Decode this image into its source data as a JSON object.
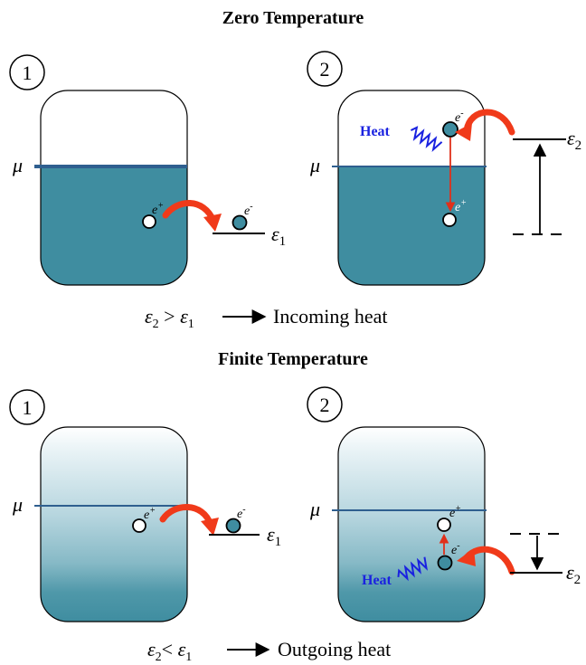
{
  "colors": {
    "liquid": "#3f8da0",
    "liquid_light": "#e8f3f6",
    "mu_line": "#2f5f8f",
    "red_arrow": "#f03a1a",
    "heat_blue": "#1a22e0",
    "black": "#000000"
  },
  "zero": {
    "title": "Zero Temperature",
    "panel1": {
      "number": "1",
      "mu": "μ",
      "hole": "e",
      "hole_sup": "+",
      "electron": "e",
      "electron_sup": "-",
      "level": "ε",
      "level_sub": "1"
    },
    "panel2": {
      "number": "2",
      "mu": "μ",
      "heat": "Heat",
      "electron": "e",
      "electron_sup": "-",
      "hole": "e",
      "hole_sup": "+",
      "level": "ε",
      "level_sub": "2"
    },
    "caption": {
      "left": "ε",
      "left_sub": "2",
      "op": " > ",
      "right": "ε",
      "right_sub": "1",
      "text": "Incoming heat"
    }
  },
  "finite": {
    "title": "Finite Temperature",
    "panel1": {
      "number": "1",
      "mu": "μ",
      "hole": "e",
      "hole_sup": "+",
      "electron": "e",
      "electron_sup": "-",
      "level": "ε",
      "level_sub": "1"
    },
    "panel2": {
      "number": "2",
      "mu": "μ",
      "heat": "Heat",
      "electron": "e",
      "electron_sup": "-",
      "hole": "e",
      "hole_sup": "+",
      "level": "ε",
      "level_sub": "2"
    },
    "caption": {
      "left": "ε",
      "left_sub": "2",
      "op": "< ",
      "right": "ε",
      "right_sub": "1",
      "text": "Outgoing heat"
    }
  }
}
